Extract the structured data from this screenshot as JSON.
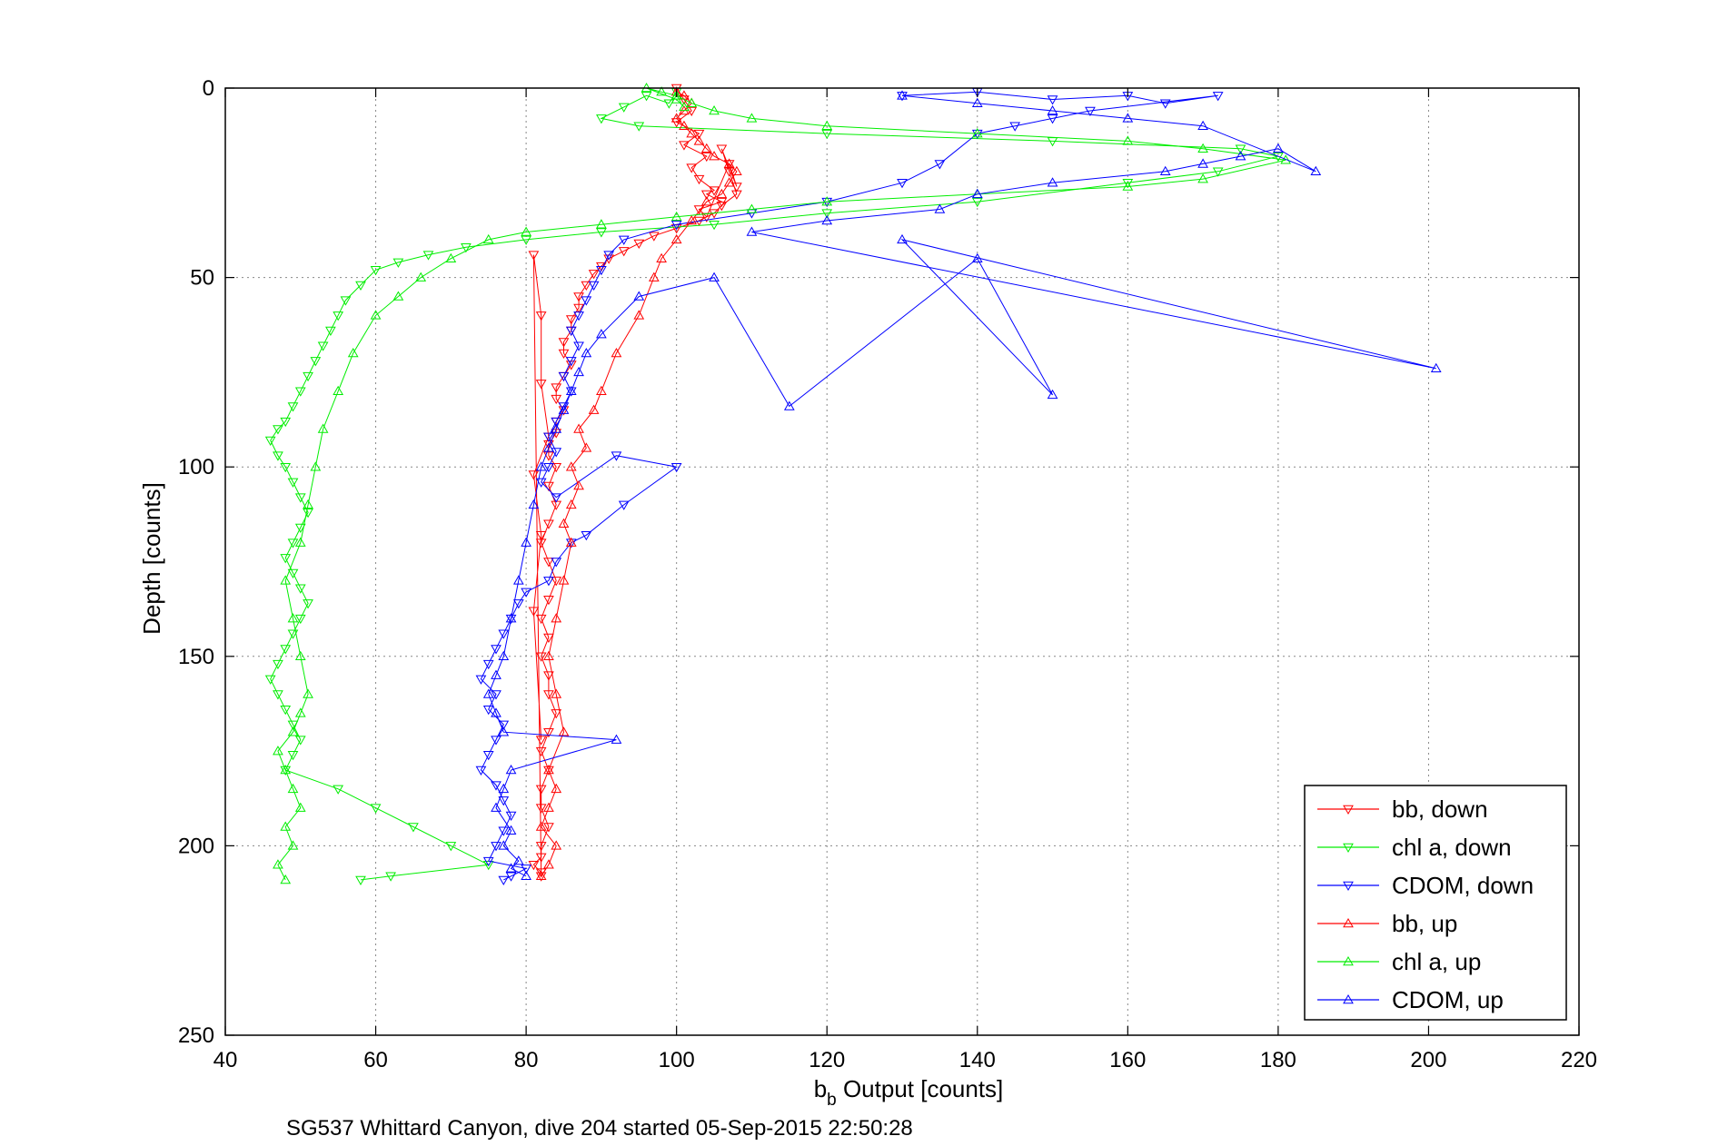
{
  "chart_data": {
    "type": "scatter",
    "title": "",
    "xlabel_main": "b",
    "xlabel_sub": "b",
    "xlabel_rest": " Output [counts]",
    "ylabel": "Depth [counts]",
    "caption": "SG537 Whittard Canyon, dive 204 started 05-Sep-2015 22:50:28",
    "xlim": [
      40,
      220
    ],
    "ylim": [
      0,
      250
    ],
    "y_reversed": true,
    "grid": true,
    "legend_position": "bottom-right",
    "xticks": [
      40,
      60,
      80,
      100,
      120,
      140,
      160,
      180,
      200,
      220
    ],
    "yticks": [
      0,
      50,
      100,
      150,
      200,
      250
    ],
    "xtick_labels": [
      "40",
      "60",
      "80",
      "100",
      "120",
      "140",
      "160",
      "180",
      "200",
      "220"
    ],
    "ytick_labels": [
      "0",
      "50",
      "100",
      "150",
      "200",
      "250"
    ],
    "series": [
      {
        "name": "bb, down",
        "color": "#ff0000",
        "marker": "triangle-down",
        "x": [
          100,
          101,
          102,
          100,
          103,
          101,
          104,
          102,
          103,
          105,
          104,
          106,
          103,
          104,
          107,
          108,
          106,
          107,
          108,
          106,
          105,
          103,
          100,
          97,
          95,
          93,
          91,
          90,
          89,
          88,
          87,
          87,
          86,
          86,
          85,
          85,
          86,
          85,
          84,
          84,
          85,
          84,
          84,
          83,
          83,
          84,
          83,
          84,
          83,
          82,
          83,
          84,
          83,
          82,
          83,
          82,
          83,
          83,
          84,
          83,
          82,
          83,
          82,
          82,
          83,
          82,
          82,
          81,
          82,
          82,
          81,
          82,
          82,
          83,
          81,
          82,
          81,
          82
        ],
        "y": [
          0,
          3,
          6,
          9,
          12,
          15,
          18,
          21,
          24,
          27,
          28,
          30,
          32,
          34,
          20,
          26,
          16,
          22,
          28,
          31,
          33,
          35,
          37,
          39,
          41,
          43,
          45,
          47,
          49,
          52,
          55,
          58,
          61,
          64,
          67,
          70,
          73,
          76,
          79,
          82,
          85,
          88,
          91,
          94,
          97,
          100,
          105,
          110,
          115,
          120,
          125,
          130,
          135,
          140,
          145,
          150,
          155,
          160,
          165,
          170,
          175,
          180,
          185,
          190,
          195,
          200,
          203,
          205,
          207,
          208,
          44,
          60,
          78,
          92,
          102,
          118,
          138,
          172
        ]
      },
      {
        "name": "chl a, down",
        "color": "#00ee00",
        "marker": "triangle-down",
        "x": [
          100,
          99,
          96,
          93,
          90,
          95,
          120,
          150,
          175,
          180,
          172,
          160,
          140,
          120,
          105,
          90,
          80,
          72,
          67,
          63,
          60,
          58,
          56,
          55,
          54,
          53,
          52,
          51,
          50,
          49,
          48,
          47,
          46,
          47,
          48,
          49,
          50,
          51,
          50,
          49,
          48,
          49,
          50,
          51,
          50,
          49,
          48,
          47,
          46,
          47,
          48,
          49,
          50,
          49,
          48,
          55,
          60,
          65,
          70,
          75,
          62,
          58
        ],
        "y": [
          1,
          4,
          2,
          5,
          8,
          10,
          12,
          14,
          16,
          18,
          22,
          25,
          30,
          33,
          36,
          38,
          40,
          42,
          44,
          46,
          48,
          52,
          56,
          60,
          64,
          68,
          72,
          76,
          80,
          84,
          88,
          90,
          93,
          97,
          100,
          104,
          108,
          112,
          116,
          120,
          124,
          128,
          132,
          136,
          140,
          144,
          148,
          152,
          156,
          160,
          164,
          168,
          172,
          176,
          180,
          185,
          190,
          195,
          200,
          205,
          208,
          209
        ]
      },
      {
        "name": "CDOM, down",
        "color": "#0000ff",
        "marker": "triangle-down",
        "x": [
          130,
          140,
          150,
          160,
          165,
          172,
          155,
          150,
          145,
          140,
          135,
          130,
          120,
          110,
          100,
          93,
          91,
          90,
          89,
          88,
          87,
          86,
          87,
          86,
          85,
          86,
          85,
          84,
          83,
          84,
          83,
          82,
          84,
          92,
          100,
          93,
          88,
          86,
          84,
          83,
          80,
          79,
          78,
          77,
          76,
          75,
          74,
          76,
          75,
          77,
          76,
          75,
          74,
          76,
          77,
          78,
          77,
          76,
          75,
          80,
          78,
          77
        ],
        "y": [
          2,
          1,
          3,
          2,
          4,
          2,
          6,
          8,
          10,
          12,
          20,
          25,
          30,
          33,
          36,
          40,
          44,
          48,
          52,
          56,
          60,
          64,
          68,
          72,
          76,
          80,
          84,
          88,
          92,
          96,
          100,
          104,
          108,
          97,
          100,
          110,
          118,
          120,
          125,
          130,
          133,
          136,
          140,
          144,
          148,
          152,
          156,
          160,
          164,
          168,
          172,
          176,
          180,
          184,
          188,
          192,
          196,
          200,
          204,
          206,
          208,
          209
        ]
      },
      {
        "name": "bb, up",
        "color": "#ff0000",
        "marker": "triangle-up",
        "x": [
          82,
          83,
          84,
          82,
          83,
          84,
          83,
          85,
          84,
          83,
          84,
          85,
          86,
          85,
          86,
          87,
          86,
          88,
          87,
          89,
          90,
          92,
          95,
          97,
          98,
          100,
          102,
          104,
          106,
          107,
          108,
          107,
          105,
          104,
          103,
          102,
          101,
          100,
          101,
          102,
          101,
          100
        ],
        "y": [
          208,
          205,
          200,
          195,
          190,
          185,
          180,
          170,
          160,
          150,
          140,
          130,
          120,
          115,
          110,
          105,
          100,
          95,
          90,
          85,
          80,
          70,
          60,
          50,
          45,
          40,
          35,
          30,
          28,
          25,
          22,
          20,
          18,
          16,
          14,
          12,
          10,
          8,
          6,
          4,
          2,
          1
        ]
      },
      {
        "name": "chl a, up",
        "color": "#00ee00",
        "marker": "triangle-up",
        "x": [
          48,
          47,
          49,
          48,
          50,
          49,
          48,
          47,
          49,
          50,
          51,
          50,
          49,
          48,
          50,
          51,
          52,
          53,
          55,
          57,
          60,
          63,
          66,
          70,
          75,
          80,
          90,
          100,
          110,
          120,
          140,
          160,
          170,
          181,
          170,
          160,
          140,
          120,
          110,
          105,
          102,
          100,
          98,
          96,
          100,
          101
        ],
        "y": [
          209,
          205,
          200,
          195,
          190,
          185,
          180,
          175,
          170,
          165,
          160,
          150,
          140,
          130,
          120,
          110,
          100,
          90,
          80,
          70,
          60,
          55,
          50,
          45,
          40,
          38,
          36,
          34,
          32,
          30,
          28,
          26,
          24,
          19,
          16,
          14,
          12,
          10,
          8,
          6,
          4,
          2,
          1,
          0,
          3,
          5
        ]
      },
      {
        "name": "CDOM, up",
        "color": "#0000ff",
        "marker": "triangle-up",
        "x": [
          80,
          78,
          79,
          77,
          78,
          76,
          77,
          78,
          92,
          77,
          76,
          75,
          76,
          77,
          78,
          79,
          80,
          81,
          82,
          83,
          84,
          85,
          86,
          87,
          88,
          90,
          95,
          105,
          115,
          140,
          150,
          130,
          201,
          110,
          120,
          135,
          140,
          150,
          165,
          170,
          175,
          180,
          185,
          170,
          160,
          150,
          140,
          130
        ],
        "y": [
          208,
          206,
          204,
          200,
          196,
          190,
          185,
          180,
          172,
          170,
          165,
          160,
          155,
          150,
          140,
          130,
          120,
          110,
          100,
          95,
          90,
          85,
          80,
          75,
          70,
          65,
          55,
          50,
          84,
          45,
          81,
          40,
          74,
          38,
          35,
          32,
          28,
          25,
          22,
          20,
          18,
          16,
          22,
          10,
          8,
          6,
          4,
          2
        ]
      }
    ]
  }
}
